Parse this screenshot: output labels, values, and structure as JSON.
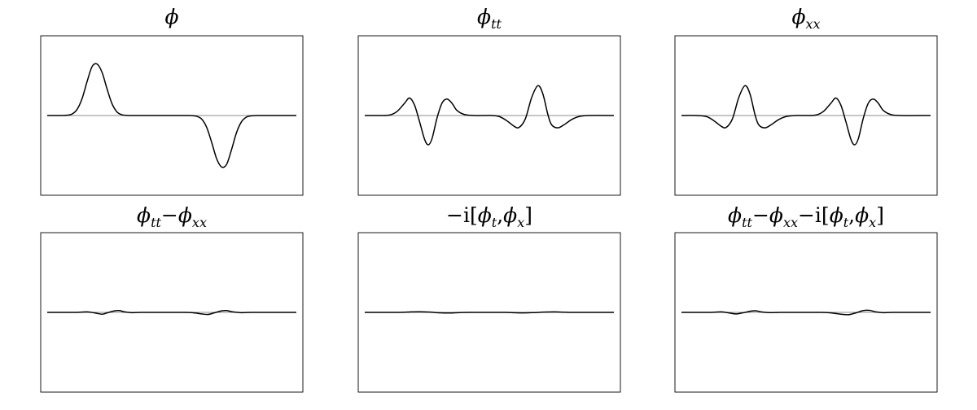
{
  "chart_data": [
    {
      "type": "line",
      "title": "ϕ",
      "title_parts": [
        {
          "t": "ϕ",
          "style": "it"
        }
      ],
      "grid": false,
      "axis": "horizontal-zero-line",
      "xlim": [
        0,
        1
      ],
      "ylim": [
        -1.55,
        1.55
      ],
      "series": [
        {
          "values": [
            [
              0,
              0
            ],
            [
              0.02,
              0
            ],
            [
              0.04,
              0
            ],
            [
              0.06,
              0.001
            ],
            [
              0.08,
              0.006
            ],
            [
              0.1,
              0.03
            ],
            [
              0.12,
              0.12
            ],
            [
              0.14,
              0.33
            ],
            [
              0.16,
              0.66
            ],
            [
              0.18,
              0.95
            ],
            [
              0.2,
              1.0
            ],
            [
              0.22,
              0.84
            ],
            [
              0.24,
              0.52
            ],
            [
              0.26,
              0.23
            ],
            [
              0.28,
              0.07
            ],
            [
              0.3,
              0.015
            ],
            [
              0.32,
              0.002
            ],
            [
              0.34,
              0
            ],
            [
              0.4,
              0
            ],
            [
              0.5,
              0
            ],
            [
              0.56,
              0
            ],
            [
              0.58,
              -0.002
            ],
            [
              0.6,
              -0.015
            ],
            [
              0.62,
              -0.07
            ],
            [
              0.64,
              -0.23
            ],
            [
              0.66,
              -0.52
            ],
            [
              0.68,
              -0.84
            ],
            [
              0.7,
              -1.0
            ],
            [
              0.72,
              -0.95
            ],
            [
              0.74,
              -0.66
            ],
            [
              0.76,
              -0.33
            ],
            [
              0.78,
              -0.12
            ],
            [
              0.8,
              -0.03
            ],
            [
              0.82,
              -0.006
            ],
            [
              0.84,
              -0.001
            ],
            [
              0.86,
              0
            ],
            [
              0.9,
              0
            ],
            [
              1.0,
              0
            ]
          ]
        }
      ]
    },
    {
      "type": "line",
      "title": "ϕtt",
      "title_parts": [
        {
          "t": "ϕ",
          "style": "it"
        },
        {
          "t": "tt",
          "style": "it-sub"
        }
      ],
      "grid": false,
      "axis": "horizontal-zero-line",
      "xlim": [
        0,
        1
      ],
      "ylim": [
        -1.55,
        1.55
      ],
      "series": [
        {
          "values": [
            [
              0,
              0
            ],
            [
              0.06,
              0
            ],
            [
              0.1,
              0.01
            ],
            [
              0.13,
              0.08
            ],
            [
              0.16,
              0.24
            ],
            [
              0.18,
              0.34
            ],
            [
              0.2,
              0.2
            ],
            [
              0.22,
              -0.12
            ],
            [
              0.24,
              -0.46
            ],
            [
              0.255,
              -0.57
            ],
            [
              0.27,
              -0.45
            ],
            [
              0.29,
              -0.05
            ],
            [
              0.31,
              0.24
            ],
            [
              0.33,
              0.32
            ],
            [
              0.35,
              0.24
            ],
            [
              0.37,
              0.1
            ],
            [
              0.4,
              0.02
            ],
            [
              0.44,
              0
            ],
            [
              0.48,
              0
            ],
            [
              0.51,
              0
            ],
            [
              0.54,
              -0.02
            ],
            [
              0.57,
              -0.1
            ],
            [
              0.6,
              -0.21
            ],
            [
              0.62,
              -0.23
            ],
            [
              0.645,
              -0.06
            ],
            [
              0.67,
              0.35
            ],
            [
              0.695,
              0.58
            ],
            [
              0.715,
              0.42
            ],
            [
              0.735,
              0.02
            ],
            [
              0.75,
              -0.18
            ],
            [
              0.775,
              -0.24
            ],
            [
              0.8,
              -0.18
            ],
            [
              0.83,
              -0.08
            ],
            [
              0.86,
              -0.02
            ],
            [
              0.9,
              0
            ],
            [
              1.0,
              0
            ]
          ]
        }
      ]
    },
    {
      "type": "line",
      "title": "ϕxx",
      "title_parts": [
        {
          "t": "ϕ",
          "style": "it"
        },
        {
          "t": "xx",
          "style": "it-sub"
        }
      ],
      "grid": false,
      "axis": "horizontal-zero-line",
      "xlim": [
        0,
        1
      ],
      "ylim": [
        -1.55,
        1.55
      ],
      "series": [
        {
          "values": [
            [
              0,
              0
            ],
            [
              0.06,
              0
            ],
            [
              0.1,
              -0.02
            ],
            [
              0.13,
              -0.1
            ],
            [
              0.16,
              -0.21
            ],
            [
              0.18,
              -0.23
            ],
            [
              0.205,
              -0.06
            ],
            [
              0.23,
              0.35
            ],
            [
              0.255,
              0.58
            ],
            [
              0.275,
              0.42
            ],
            [
              0.295,
              0.02
            ],
            [
              0.31,
              -0.18
            ],
            [
              0.335,
              -0.24
            ],
            [
              0.36,
              -0.18
            ],
            [
              0.39,
              -0.08
            ],
            [
              0.42,
              -0.02
            ],
            [
              0.46,
              0
            ],
            [
              0.5,
              0
            ],
            [
              0.54,
              0.01
            ],
            [
              0.57,
              0.08
            ],
            [
              0.6,
              0.24
            ],
            [
              0.62,
              0.34
            ],
            [
              0.64,
              0.2
            ],
            [
              0.66,
              -0.12
            ],
            [
              0.68,
              -0.46
            ],
            [
              0.695,
              -0.57
            ],
            [
              0.71,
              -0.45
            ],
            [
              0.73,
              -0.05
            ],
            [
              0.75,
              0.24
            ],
            [
              0.77,
              0.32
            ],
            [
              0.79,
              0.24
            ],
            [
              0.81,
              0.1
            ],
            [
              0.84,
              0.02
            ],
            [
              0.88,
              0
            ],
            [
              1.0,
              0
            ]
          ]
        }
      ]
    },
    {
      "type": "line",
      "title": "ϕtt−ϕxx",
      "title_parts": [
        {
          "t": "ϕ",
          "style": "it"
        },
        {
          "t": "tt",
          "style": "it-sub"
        },
        {
          "t": "−",
          "style": "n"
        },
        {
          "t": "ϕ",
          "style": "it"
        },
        {
          "t": "xx",
          "style": "it-sub"
        }
      ],
      "grid": false,
      "axis": "horizontal-zero-line",
      "xlim": [
        0,
        1
      ],
      "ylim": [
        -1.55,
        1.55
      ],
      "series": [
        {
          "values": [
            [
              0,
              0
            ],
            [
              0.12,
              0
            ],
            [
              0.16,
              0.01
            ],
            [
              0.19,
              -0.01
            ],
            [
              0.22,
              -0.035
            ],
            [
              0.24,
              -0.01
            ],
            [
              0.27,
              0.03
            ],
            [
              0.29,
              0.035
            ],
            [
              0.31,
              0.01
            ],
            [
              0.34,
              -0.005
            ],
            [
              0.38,
              0
            ],
            [
              0.55,
              0
            ],
            [
              0.59,
              -0.01
            ],
            [
              0.62,
              -0.03
            ],
            [
              0.645,
              -0.04
            ],
            [
              0.67,
              -0.01
            ],
            [
              0.7,
              0.03
            ],
            [
              0.72,
              0.035
            ],
            [
              0.745,
              0.01
            ],
            [
              0.78,
              -0.005
            ],
            [
              0.82,
              0
            ],
            [
              1.0,
              0
            ]
          ]
        }
      ]
    },
    {
      "type": "line",
      "title": "−i[ϕt,ϕx]",
      "title_parts": [
        {
          "t": "−i[",
          "style": "n"
        },
        {
          "t": "ϕ",
          "style": "it"
        },
        {
          "t": "t",
          "style": "it-sub"
        },
        {
          "t": ",",
          "style": "n"
        },
        {
          "t": "ϕ",
          "style": "it"
        },
        {
          "t": "x",
          "style": "it-sub"
        },
        {
          "t": "]",
          "style": "n"
        }
      ],
      "grid": false,
      "axis": "horizontal-zero-line",
      "xlim": [
        0,
        1
      ],
      "ylim": [
        -1.55,
        1.55
      ],
      "series": [
        {
          "values": [
            [
              0,
              0
            ],
            [
              0.14,
              0
            ],
            [
              0.18,
              0.008
            ],
            [
              0.22,
              0.012
            ],
            [
              0.26,
              0.005
            ],
            [
              0.3,
              -0.008
            ],
            [
              0.34,
              -0.012
            ],
            [
              0.38,
              -0.004
            ],
            [
              0.42,
              0
            ],
            [
              0.56,
              0
            ],
            [
              0.6,
              -0.006
            ],
            [
              0.64,
              -0.01
            ],
            [
              0.68,
              -0.004
            ],
            [
              0.72,
              0.006
            ],
            [
              0.76,
              0.01
            ],
            [
              0.8,
              0.004
            ],
            [
              0.84,
              0
            ],
            [
              1.0,
              0
            ]
          ]
        }
      ]
    },
    {
      "type": "line",
      "title": "ϕtt−ϕxx−i[ϕt,ϕx]",
      "title_parts": [
        {
          "t": "ϕ",
          "style": "it"
        },
        {
          "t": "tt",
          "style": "it-sub"
        },
        {
          "t": "−",
          "style": "n"
        },
        {
          "t": "ϕ",
          "style": "it"
        },
        {
          "t": "xx",
          "style": "it-sub"
        },
        {
          "t": "−i[",
          "style": "n"
        },
        {
          "t": "ϕ",
          "style": "it"
        },
        {
          "t": "t",
          "style": "it-sub"
        },
        {
          "t": ",",
          "style": "n"
        },
        {
          "t": "ϕ",
          "style": "it"
        },
        {
          "t": "x",
          "style": "it-sub"
        },
        {
          "t": "]",
          "style": "n"
        }
      ],
      "grid": false,
      "axis": "horizontal-zero-line",
      "xlim": [
        0,
        1
      ],
      "ylim": [
        -1.55,
        1.55
      ],
      "series": [
        {
          "values": [
            [
              0,
              0
            ],
            [
              0.12,
              0
            ],
            [
              0.16,
              0.01
            ],
            [
              0.19,
              -0.01
            ],
            [
              0.22,
              -0.03
            ],
            [
              0.25,
              -0.005
            ],
            [
              0.28,
              0.025
            ],
            [
              0.3,
              0.03
            ],
            [
              0.32,
              0.01
            ],
            [
              0.35,
              -0.004
            ],
            [
              0.4,
              0
            ],
            [
              0.56,
              0
            ],
            [
              0.6,
              -0.01
            ],
            [
              0.64,
              -0.035
            ],
            [
              0.67,
              -0.045
            ],
            [
              0.7,
              -0.01
            ],
            [
              0.73,
              0.035
            ],
            [
              0.755,
              0.04
            ],
            [
              0.78,
              0.01
            ],
            [
              0.81,
              -0.005
            ],
            [
              0.85,
              0
            ],
            [
              1.0,
              0
            ]
          ]
        }
      ]
    }
  ]
}
